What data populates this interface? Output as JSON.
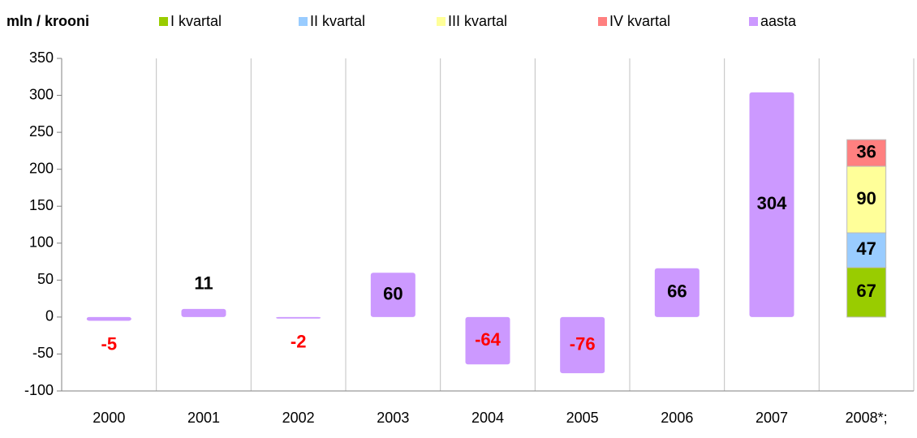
{
  "chart_data": {
    "type": "stacked-bar",
    "y_label": "mln / krooni",
    "categories": [
      "2000",
      "2001",
      "2002",
      "2003",
      "2004",
      "2005",
      "2006",
      "2007",
      "2008*;"
    ],
    "series": [
      {
        "name": "I kvartal",
        "color": "#99cc00",
        "values": [
          null,
          null,
          null,
          null,
          null,
          null,
          null,
          null,
          67
        ]
      },
      {
        "name": "II kvartal",
        "color": "#99ccff",
        "values": [
          null,
          null,
          null,
          null,
          null,
          null,
          null,
          null,
          47
        ]
      },
      {
        "name": "III kvartal",
        "color": "#ffff99",
        "values": [
          null,
          null,
          null,
          null,
          null,
          null,
          null,
          null,
          90
        ]
      },
      {
        "name": "IV kvartal",
        "color": "#ff8080",
        "values": [
          null,
          null,
          null,
          null,
          null,
          null,
          null,
          null,
          36
        ]
      },
      {
        "name": "aasta",
        "color": "#cc99ff",
        "values": [
          -5,
          11,
          -2,
          60,
          -64,
          -76,
          66,
          304,
          null
        ]
      }
    ],
    "ylim": [
      -100,
      350
    ],
    "yticks": [
      -100,
      -50,
      0,
      50,
      100,
      150,
      200,
      250,
      300,
      350
    ],
    "negative_label_color": "#ff0000",
    "positive_label_color": "#000000"
  }
}
